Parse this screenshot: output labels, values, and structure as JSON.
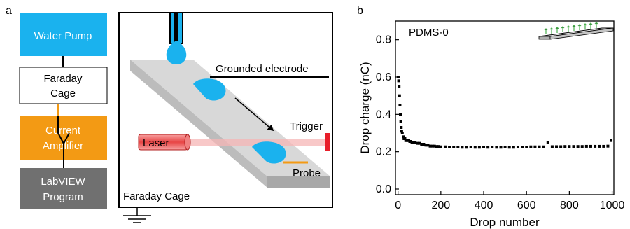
{
  "panel_a": {
    "label": "a",
    "flow_boxes": [
      {
        "text": "Water Pump",
        "color": "#1ab2ee"
      },
      {
        "text": "Faraday Cage",
        "color": "#ffffff"
      },
      {
        "text": "Current Amplifier",
        "color": "#f39a14"
      },
      {
        "text": "LabVIEW Program",
        "color": "#707070"
      }
    ],
    "schematic": {
      "grounded_electrode": "Grounded electrode",
      "trigger": "Trigger",
      "laser": "Laser",
      "probe": "Probe",
      "cage": "Faraday Cage"
    },
    "colors": {
      "water": "#1ab2ee",
      "laser": "#e84545",
      "probe": "#f39a14"
    }
  },
  "panel_b": {
    "label": "b",
    "chart_data": {
      "type": "scatter",
      "title": "",
      "annotation": "PDMS-0",
      "xlabel": "Drop number",
      "ylabel": "Drop charge (nC)",
      "xlim": [
        0,
        1000
      ],
      "ylim": [
        -0.03,
        0.9
      ],
      "x_ticks": [
        "0",
        "200",
        "400",
        "600",
        "800",
        "1000"
      ],
      "y_ticks": [
        "0.0",
        "0.2",
        "0.4",
        "0.6",
        "0.8"
      ],
      "series": [
        {
          "marker_color": "#000000",
          "points": [
            [
              1,
              0.6
            ],
            [
              3,
              0.58
            ],
            [
              5,
              0.55
            ],
            [
              7,
              0.5
            ],
            [
              9,
              0.45
            ],
            [
              11,
              0.4
            ],
            [
              13,
              0.36
            ],
            [
              15,
              0.33
            ],
            [
              17,
              0.31
            ],
            [
              20,
              0.3
            ],
            [
              24,
              0.28
            ],
            [
              28,
              0.27
            ],
            [
              32,
              0.27
            ],
            [
              36,
              0.26
            ],
            [
              40,
              0.26
            ],
            [
              45,
              0.26
            ],
            [
              50,
              0.26
            ],
            [
              55,
              0.255
            ],
            [
              60,
              0.255
            ],
            [
              65,
              0.25
            ],
            [
              70,
              0.25
            ],
            [
              75,
              0.25
            ],
            [
              80,
              0.25
            ],
            [
              90,
              0.245
            ],
            [
              100,
              0.245
            ],
            [
              110,
              0.24
            ],
            [
              120,
              0.24
            ],
            [
              130,
              0.235
            ],
            [
              140,
              0.235
            ],
            [
              150,
              0.23
            ],
            [
              160,
              0.23
            ],
            [
              170,
              0.23
            ],
            [
              180,
              0.228
            ],
            [
              190,
              0.228
            ],
            [
              200,
              0.226
            ],
            [
              220,
              0.226
            ],
            [
              240,
              0.225
            ],
            [
              260,
              0.225
            ],
            [
              280,
              0.225
            ],
            [
              300,
              0.224
            ],
            [
              320,
              0.224
            ],
            [
              340,
              0.225
            ],
            [
              360,
              0.224
            ],
            [
              380,
              0.224
            ],
            [
              400,
              0.225
            ],
            [
              420,
              0.224
            ],
            [
              440,
              0.225
            ],
            [
              460,
              0.224
            ],
            [
              480,
              0.224
            ],
            [
              500,
              0.225
            ],
            [
              520,
              0.224
            ],
            [
              540,
              0.224
            ],
            [
              560,
              0.225
            ],
            [
              580,
              0.225
            ],
            [
              600,
              0.225
            ],
            [
              620,
              0.226
            ],
            [
              640,
              0.226
            ],
            [
              660,
              0.226
            ],
            [
              680,
              0.226
            ],
            [
              700,
              0.25
            ],
            [
              720,
              0.227
            ],
            [
              740,
              0.227
            ],
            [
              760,
              0.227
            ],
            [
              780,
              0.228
            ],
            [
              800,
              0.228
            ],
            [
              820,
              0.228
            ],
            [
              840,
              0.228
            ],
            [
              860,
              0.228
            ],
            [
              880,
              0.229
            ],
            [
              900,
              0.229
            ],
            [
              920,
              0.229
            ],
            [
              940,
              0.229
            ],
            [
              960,
              0.229
            ],
            [
              980,
              0.23
            ],
            [
              995,
              0.26
            ]
          ]
        }
      ]
    }
  }
}
